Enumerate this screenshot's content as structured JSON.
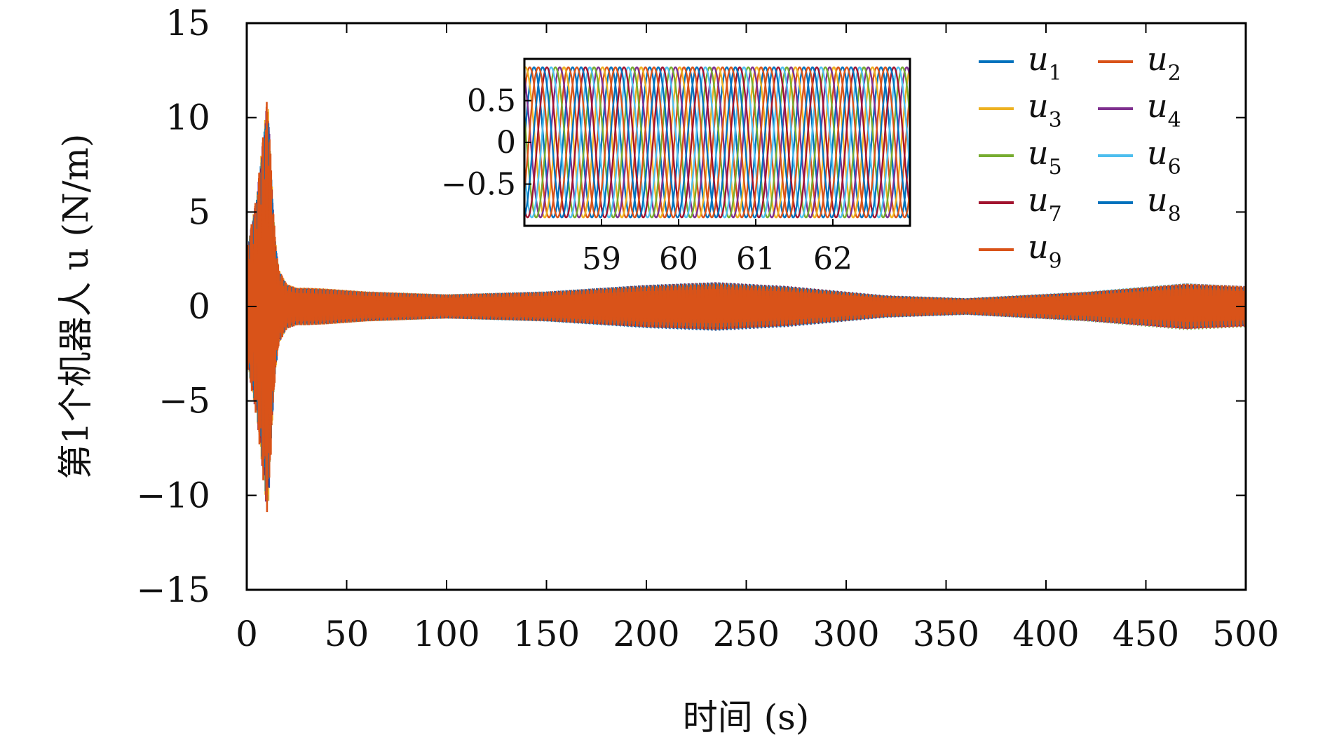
{
  "chart_data": {
    "type": "line",
    "xlabel": "时间 (s)",
    "ylabel": "第1个机器人 u (N/m)",
    "xlim": [
      0,
      500
    ],
    "ylim": [
      -15,
      15
    ],
    "x_ticks": [
      0,
      50,
      100,
      150,
      200,
      250,
      300,
      350,
      400,
      450,
      500
    ],
    "y_ticks": [
      15,
      10,
      5,
      0,
      -5,
      -10,
      -15
    ],
    "y_tick_labels": [
      "15",
      "10",
      "5",
      "0",
      "−5",
      "−10",
      "−15"
    ],
    "series": [
      {
        "name": "u1",
        "color": "#0072BD"
      },
      {
        "name": "u2",
        "color": "#D95319"
      },
      {
        "name": "u3",
        "color": "#EDB120"
      },
      {
        "name": "u4",
        "color": "#7E2F8E"
      },
      {
        "name": "u5",
        "color": "#77AC30"
      },
      {
        "name": "u6",
        "color": "#4DBEEE"
      },
      {
        "name": "u7",
        "color": "#A2142F"
      },
      {
        "name": "u8",
        "color": "#0072BD"
      },
      {
        "name": "u9",
        "color": "#D95319"
      }
    ],
    "envelope": {
      "x": [
        0,
        5,
        8,
        10,
        11,
        12,
        14,
        16,
        20,
        25,
        30,
        40,
        60,
        100,
        150,
        200,
        235,
        270,
        320,
        360,
        420,
        470,
        500
      ],
      "upper": [
        3,
        6,
        9,
        11,
        10.5,
        8,
        4,
        2,
        1.2,
        1.0,
        1.0,
        0.95,
        0.8,
        0.65,
        0.8,
        1.15,
        1.3,
        1.1,
        0.6,
        0.45,
        0.8,
        1.25,
        1.1
      ],
      "lower": [
        -3,
        -6,
        -9,
        -11,
        -10.5,
        -8,
        -4,
        -2,
        -1.2,
        -1.0,
        -1.0,
        -0.95,
        -0.8,
        -0.65,
        -0.8,
        -1.15,
        -1.3,
        -1.1,
        -0.6,
        -0.45,
        -0.8,
        -1.25,
        -1.1
      ]
    },
    "grid": false,
    "legend_position": "top-right",
    "inset": {
      "xlim": [
        58,
        63
      ],
      "ylim": [
        -1,
        1
      ],
      "x_ticks": [
        59,
        60,
        61,
        62
      ],
      "y_ticks": [
        0.5,
        0,
        -0.5
      ],
      "y_tick_labels": [
        "0.5",
        "0",
        "−0.5"
      ],
      "amplitude": 0.9,
      "period": 0.5
    }
  }
}
